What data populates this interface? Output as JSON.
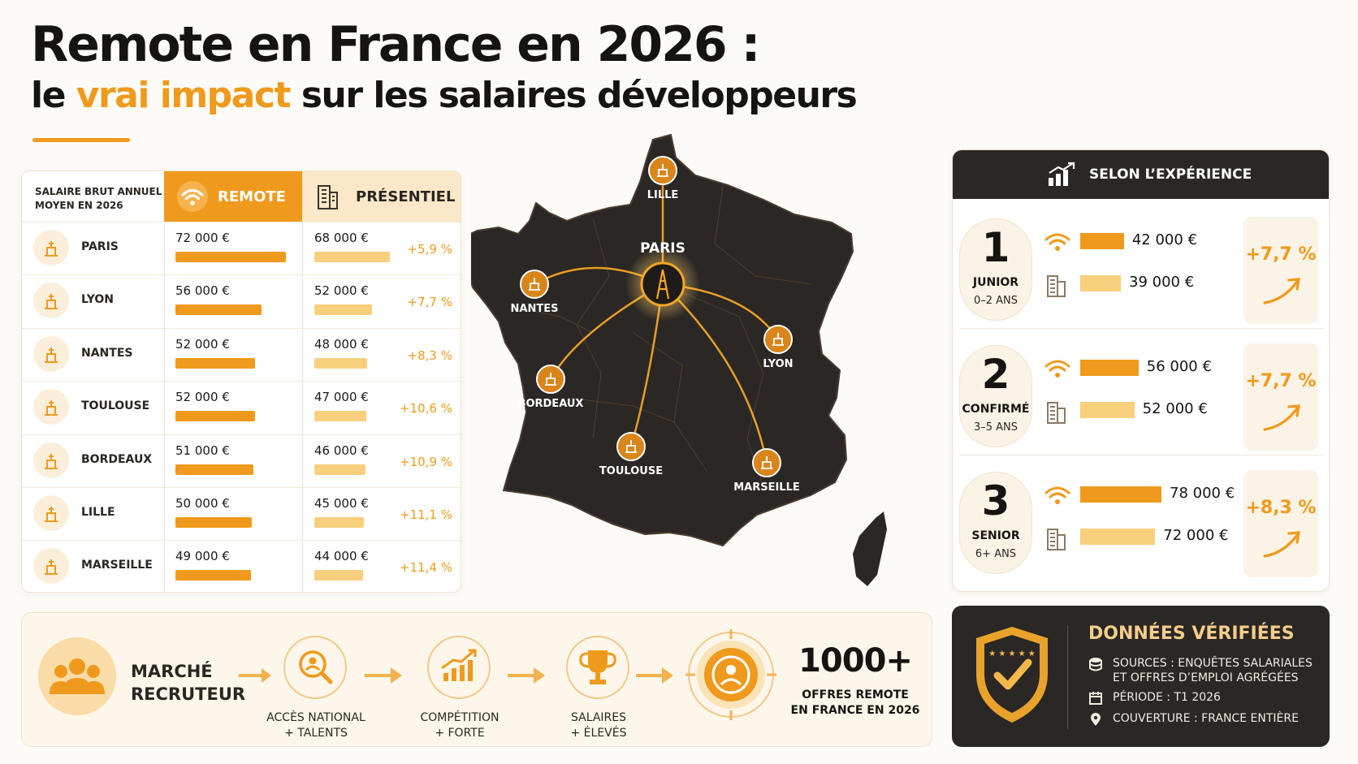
{
  "header": {
    "title": "Remote en France en 2026 :",
    "subtitle_pre": "le",
    "subtitle_accent": "vrai impact",
    "subtitle_post": "sur les salaires développeurs"
  },
  "table": {
    "label_line1": "SALAIRE BRUT ANNUEL",
    "label_line2": "MOYEN EN 2026",
    "remote_header": "REMOTE",
    "presentiel_header": "PRÉSENTIEL"
  },
  "map": {
    "hub": "PARIS",
    "cities": [
      "LILLE",
      "NANTES",
      "LYON",
      "BORDEAUX",
      "TOULOUSE",
      "MARSEILLE"
    ]
  },
  "experience": {
    "header": "SELON L’EXPÉRIENCE",
    "levels": [
      {
        "num": "1",
        "label": "JUNIOR",
        "years": "0–2 ANS",
        "remote_text": "42 000 €",
        "pres_text": "39 000 €",
        "gain": "+7,7 %"
      },
      {
        "num": "2",
        "label": "CONFIRMÉ",
        "years": "3–5 ANS",
        "remote_text": "56 000 €",
        "pres_text": "52 000 €",
        "gain": "+7,7 %"
      },
      {
        "num": "3",
        "label": "SENIOR",
        "years": "6+ ANS",
        "remote_text": "78 000 €",
        "pres_text": "72 000 €",
        "gain": "+8,3 %"
      }
    ]
  },
  "market": {
    "title_line1": "MARCHÉ",
    "title_line2": "RECRUTEUR",
    "steps": [
      {
        "line1": "ACCÈS NATIONAL",
        "line2": "+ TALENTS",
        "icon": "search-person-icon"
      },
      {
        "line1": "COMPÉTITION",
        "line2": "+ FORTE",
        "icon": "growth-chart-icon"
      },
      {
        "line1": "SALAIRES",
        "line2": "+ ÉLEVÉS",
        "icon": "trophy-icon"
      }
    ],
    "big_number": "1000+",
    "big_sub_line1": "OFFRES REMOTE",
    "big_sub_line2": "EN FRANCE EN 2026"
  },
  "verified": {
    "title": "DONNÉES VÉRIFIÉES",
    "sources_line1": "SOURCES : ENQUÊTES SALARIALES",
    "sources_line2": "ET OFFRES D’EMPLOI AGRÉGÉES",
    "period": "PÉRIODE : T1 2026",
    "coverage": "COUVERTURE : FRANCE ENTIÈRE"
  },
  "colors": {
    "accent": "#ef9a1c",
    "accent_light": "#f8cf7c",
    "dark": "#2a2725",
    "map": "#2b2725"
  },
  "chart_data": [
    {
      "type": "bar",
      "orientation": "horizontal",
      "categories": [
        "PARIS",
        "LYON",
        "NANTES",
        "TOULOUSE",
        "BORDEAUX",
        "LILLE",
        "MARSEILLE"
      ],
      "series": [
        {
          "name": "REMOTE",
          "values": [
            72000,
            56000,
            52000,
            52000,
            51000,
            50000,
            49000
          ],
          "labels": [
            "72 000 €",
            "56 000 €",
            "52 000 €",
            "52 000 €",
            "51 000 €",
            "50 000 €",
            "49 000 €"
          ]
        },
        {
          "name": "PRÉSENTIEL",
          "values": [
            68000,
            52000,
            48000,
            47000,
            46000,
            45000,
            44000
          ],
          "labels": [
            "68 000 €",
            "52 000 €",
            "48 000 €",
            "47 000 €",
            "46 000 €",
            "45 000 €",
            "44 000 €"
          ]
        }
      ],
      "differences": [
        "+5,9 %",
        "+7,7 %",
        "+8,3 %",
        "+10,6 %",
        "+10,9 %",
        "+11,1 %",
        "+11,4 %"
      ]
    },
    {
      "type": "bar",
      "orientation": "horizontal",
      "categories": [
        "JUNIOR",
        "CONFIRMÉ",
        "SENIOR"
      ],
      "series": [
        {
          "name": "Remote",
          "values": [
            42000,
            56000,
            78000
          ]
        },
        {
          "name": "Présentiel",
          "values": [
            39000,
            52000,
            72000
          ]
        }
      ],
      "differences": [
        "+7,7 %",
        "+7,7 %",
        "+8,3 %"
      ]
    }
  ]
}
